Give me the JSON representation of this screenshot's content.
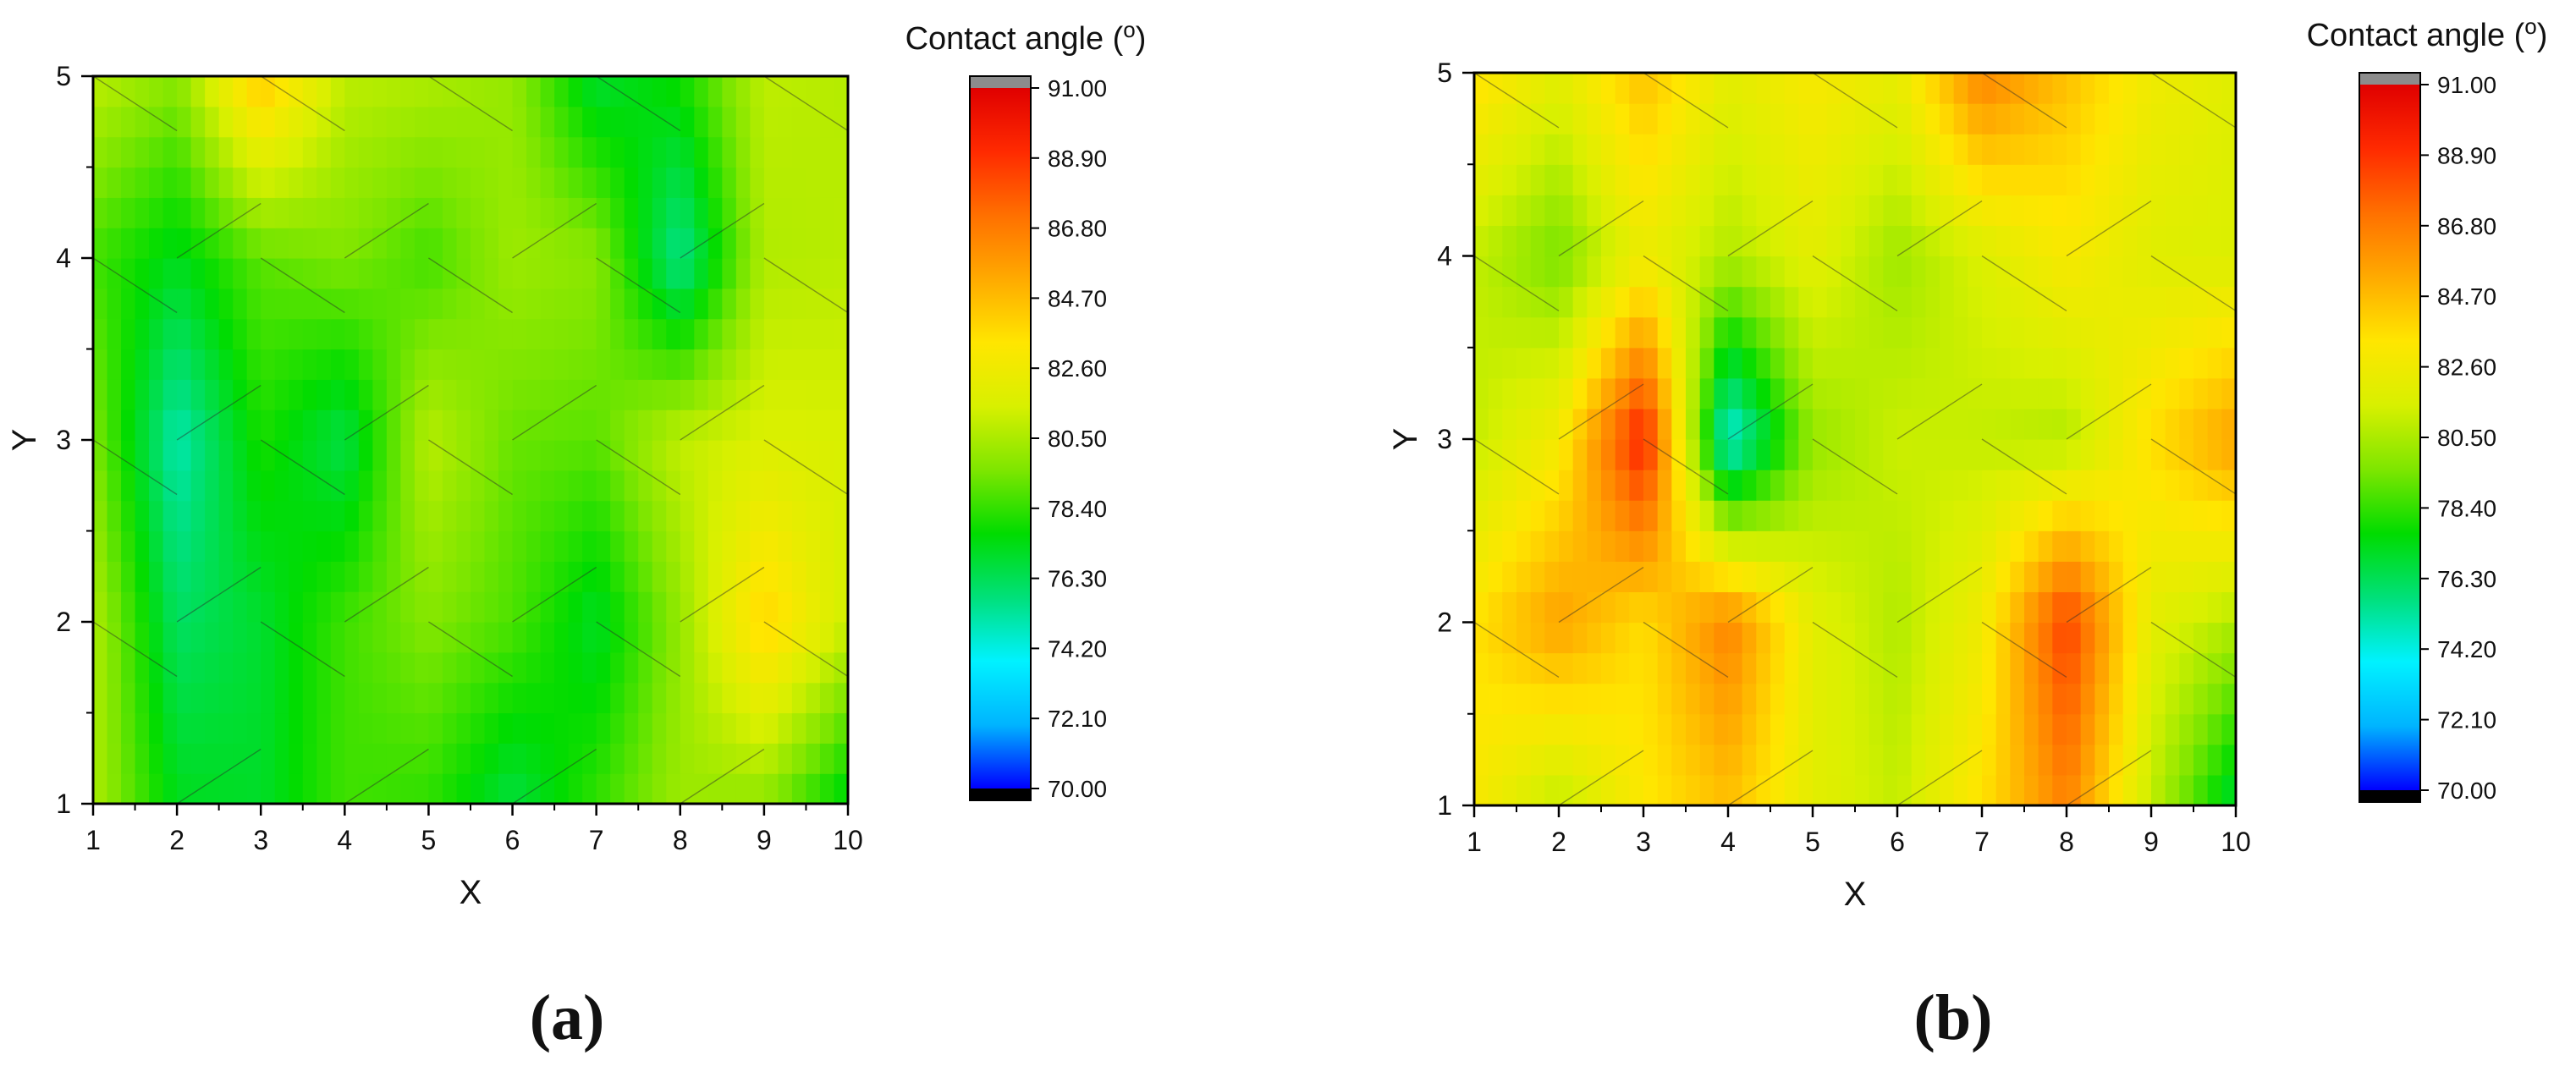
{
  "colorbar": {
    "title": "Contact angle (",
    "title_unit_symbol": "o",
    "title_close": ")",
    "min": 70,
    "max": 91,
    "tick_labels": [
      "91.00",
      "88.90",
      "86.80",
      "84.70",
      "82.60",
      "80.50",
      "78.40",
      "76.30",
      "74.20",
      "72.10",
      "70.00"
    ],
    "colormap": [
      "#0000ff",
      "#00b4ff",
      "#00f2ff",
      "#00e07a",
      "#00dc00",
      "#7ee600",
      "#d8f000",
      "#ffe600",
      "#ffaa00",
      "#ff7000",
      "#ff2a00",
      "#e00000"
    ],
    "over_color": "#8c8c8c",
    "under_color": "#000000",
    "contour_line_color": "#2b2b2b"
  },
  "panels": [
    {
      "label": "(a)",
      "letter": "a",
      "xlabel": "X",
      "ylabel": "Y",
      "xticks": [
        "1",
        "2",
        "3",
        "4",
        "5",
        "6",
        "7",
        "8",
        "9",
        "10"
      ],
      "yticks": [
        "1",
        "2",
        "3",
        "4",
        "5"
      ]
    },
    {
      "label": "(b)",
      "letter": "b",
      "xlabel": "X",
      "ylabel": "Y",
      "xticks": [
        "1",
        "2",
        "3",
        "4",
        "5",
        "6",
        "7",
        "8",
        "9",
        "10"
      ],
      "yticks": [
        "1",
        "2",
        "3",
        "4",
        "5"
      ]
    }
  ],
  "chart_data": [
    {
      "type": "heatmap",
      "panel": "a",
      "xlabel": "X",
      "ylabel": "Y",
      "xlim": [
        1,
        10
      ],
      "ylim": [
        1,
        5
      ],
      "x": [
        1,
        2,
        3,
        4,
        5,
        6,
        7,
        8,
        9,
        10
      ],
      "y": [
        1,
        2,
        3,
        4,
        5
      ],
      "z": [
        [
          80.5,
          77.2,
          77.0,
          78.6,
          78.3,
          76.6,
          78.4,
          80.2,
          79.8,
          77.2
        ],
        [
          80.6,
          76.1,
          76.9,
          78.6,
          79.7,
          78.8,
          77.0,
          80.0,
          84.0,
          81.2
        ],
        [
          79.6,
          74.9,
          78.0,
          76.5,
          80.8,
          79.2,
          79.0,
          81.0,
          81.6,
          81.5
        ],
        [
          78.6,
          77.2,
          79.0,
          79.6,
          78.6,
          80.2,
          79.8,
          75.4,
          80.6,
          80.8
        ],
        [
          80.9,
          79.8,
          84.5,
          80.9,
          80.6,
          80.0,
          76.8,
          77.9,
          80.9,
          80.7
        ]
      ],
      "colorbar_title": "Contact angle (o)",
      "colorbar_range": [
        70,
        91
      ]
    },
    {
      "type": "heatmap",
      "panel": "b",
      "xlabel": "X",
      "ylabel": "Y",
      "xlim": [
        1,
        10
      ],
      "ylim": [
        1,
        5
      ],
      "x": [
        1,
        2,
        3,
        4,
        5,
        6,
        7,
        8,
        9,
        10
      ],
      "y": [
        1,
        2,
        3,
        4,
        5
      ],
      "z": [
        [
          83.0,
          80.8,
          83.2,
          84.6,
          82.0,
          81.0,
          83.5,
          86.6,
          81.0,
          76.6
        ],
        [
          83.5,
          85.6,
          83.6,
          86.6,
          82.0,
          80.6,
          82.6,
          88.6,
          82.0,
          80.6
        ],
        [
          81.0,
          82.8,
          89.6,
          74.0,
          80.0,
          81.2,
          81.0,
          80.6,
          83.6,
          85.6
        ],
        [
          81.0,
          79.4,
          82.4,
          80.6,
          82.0,
          80.2,
          81.6,
          83.0,
          81.8,
          81.6
        ],
        [
          83.6,
          82.0,
          84.6,
          82.0,
          83.0,
          82.2,
          86.6,
          84.6,
          82.6,
          81.8
        ]
      ],
      "colorbar_title": "Contact angle (o)",
      "colorbar_range": [
        70,
        91
      ]
    }
  ]
}
